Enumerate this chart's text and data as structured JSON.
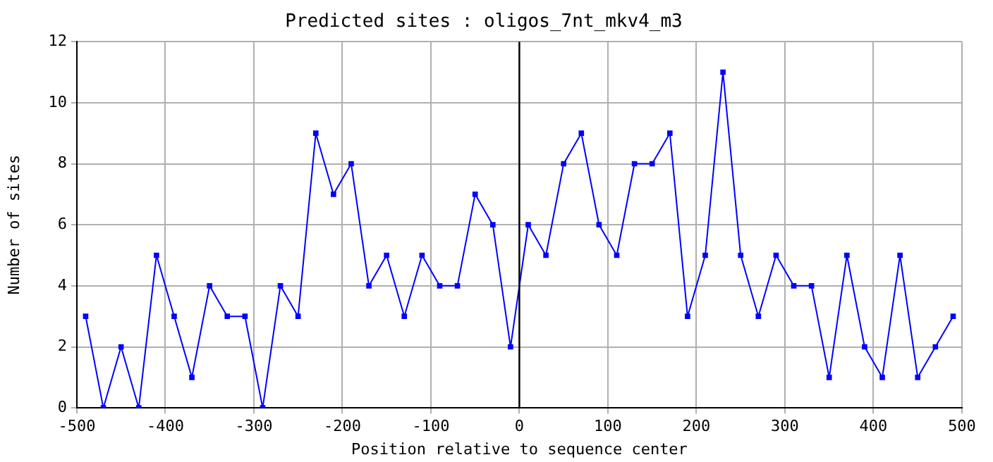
{
  "chart_data": {
    "type": "line",
    "title": "Predicted sites : oligos_7nt_mkv4_m3",
    "xlabel": "Position relative to sequence center",
    "ylabel": "Number of sites",
    "x": [
      -490,
      -470,
      -450,
      -430,
      -410,
      -390,
      -370,
      -350,
      -330,
      -310,
      -290,
      -270,
      -250,
      -230,
      -210,
      -190,
      -170,
      -150,
      -130,
      -110,
      -90,
      -70,
      -50,
      -30,
      -10,
      10,
      30,
      50,
      70,
      90,
      110,
      130,
      150,
      170,
      190,
      210,
      230,
      250,
      270,
      290,
      310,
      330,
      350,
      370,
      390,
      410,
      430,
      450,
      470,
      490
    ],
    "series": [
      {
        "color": "#0000ff",
        "values": [
          3,
          0,
          2,
          0,
          5,
          3,
          1,
          4,
          3,
          3,
          0,
          4,
          3,
          9,
          7,
          8,
          4,
          5,
          3,
          5,
          4,
          4,
          7,
          6,
          2,
          6,
          5,
          8,
          9,
          6,
          5,
          8,
          8,
          9,
          3,
          5,
          11,
          5,
          3,
          5,
          4,
          4,
          1,
          5,
          2,
          1,
          5,
          1,
          2,
          3
        ]
      }
    ],
    "xlim": [
      -500,
      500
    ],
    "xticks": [
      -500,
      -400,
      -300,
      -200,
      -100,
      0,
      100,
      200,
      300,
      400,
      500
    ],
    "ylim": [
      0,
      12
    ],
    "yticks": [
      0,
      2,
      4,
      6,
      8,
      10,
      12
    ],
    "ref_lines": [
      {
        "axis": "x",
        "value": 0,
        "color": "#000000"
      }
    ],
    "grid": true,
    "legend": false,
    "marker": "square",
    "line_style": "solid"
  }
}
